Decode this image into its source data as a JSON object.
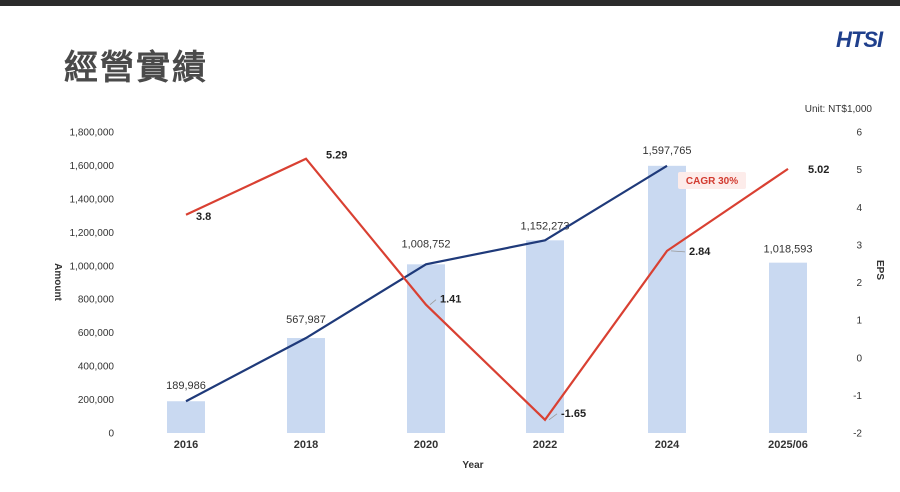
{
  "page": {
    "title": "經營實績",
    "logo_text": "HTSI",
    "unit_label": "Unit: NT$1,000"
  },
  "colors": {
    "bar": "#c9d9f1",
    "amount_line": "#1f3a7a",
    "eps_line": "#d94032",
    "cagr_badge_bg": "#fdecea",
    "cagr_text": "#d23a2f"
  },
  "chart_data": {
    "type": "bar",
    "categories": [
      "2016",
      "2018",
      "2020",
      "2022",
      "2024",
      "2025/06"
    ],
    "xlabel": "Year",
    "ylabel": "Amount",
    "y2label": "EPS",
    "ylim": [
      0,
      1800000
    ],
    "y2lim": [
      -2,
      6
    ],
    "yticks": [
      "0",
      "200,000",
      "400,000",
      "600,000",
      "800,000",
      "1,000,000",
      "1,200,000",
      "1,400,000",
      "1,600,000",
      "1,800,000"
    ],
    "y2ticks": [
      "-2",
      "-1",
      "0",
      "1",
      "2",
      "3",
      "4",
      "5",
      "6"
    ],
    "bar_values": [
      189986,
      567987,
      1008752,
      1152273,
      1597765,
      1018593
    ],
    "bar_labels": [
      "189,986",
      "567,987",
      "1,008,752",
      "1,152,273",
      "1,597,765",
      "1,018,593"
    ],
    "amount_line_values": [
      189986,
      567987,
      1008752,
      1152273,
      1597765
    ],
    "eps_values": [
      3.8,
      5.29,
      1.41,
      -1.65,
      2.84,
      5.02
    ],
    "eps_labels": [
      "3.8",
      "5.29",
      "1.41",
      "-1.65",
      "2.84",
      "5.02"
    ],
    "annotation": "CAGR 30%",
    "grid": false
  }
}
